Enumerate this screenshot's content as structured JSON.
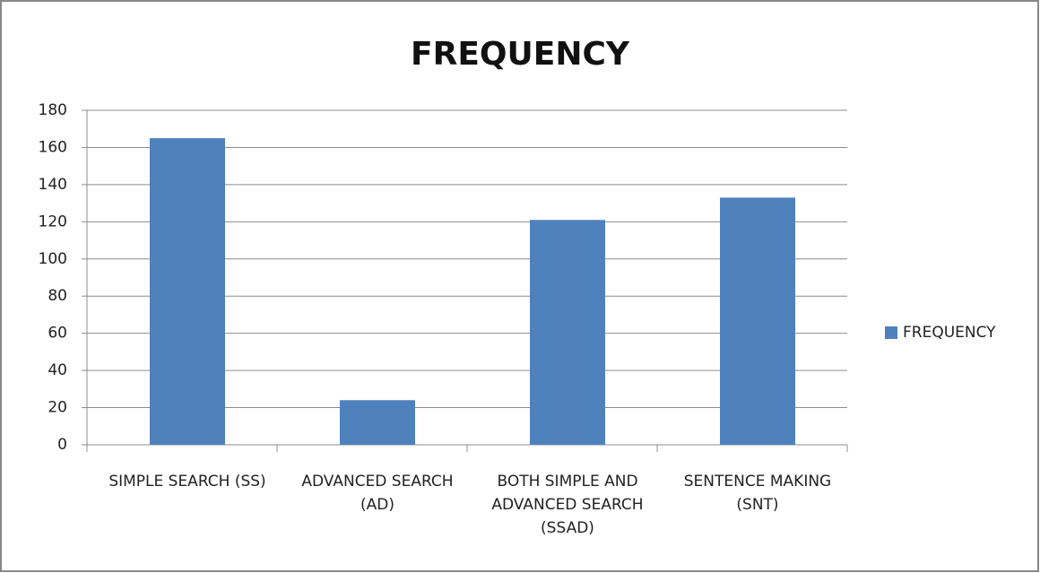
{
  "chart_data": {
    "type": "bar",
    "title": "FREQUENCY",
    "categories": [
      "SIMPLE SEARCH (SS)",
      "ADVANCED SEARCH (AD)",
      "BOTH SIMPLE AND ADVANCED SEARCH (SSAD)",
      "SENTENCE MAKING (SNT)"
    ],
    "series": [
      {
        "name": "FREQUENCY",
        "color": "#4f81bd",
        "values": [
          165,
          24,
          121,
          133
        ]
      }
    ],
    "ylim": [
      0,
      180
    ],
    "yticks": [
      0,
      20,
      40,
      60,
      80,
      100,
      120,
      140,
      160,
      180
    ],
    "grid": true,
    "legend": "right"
  }
}
